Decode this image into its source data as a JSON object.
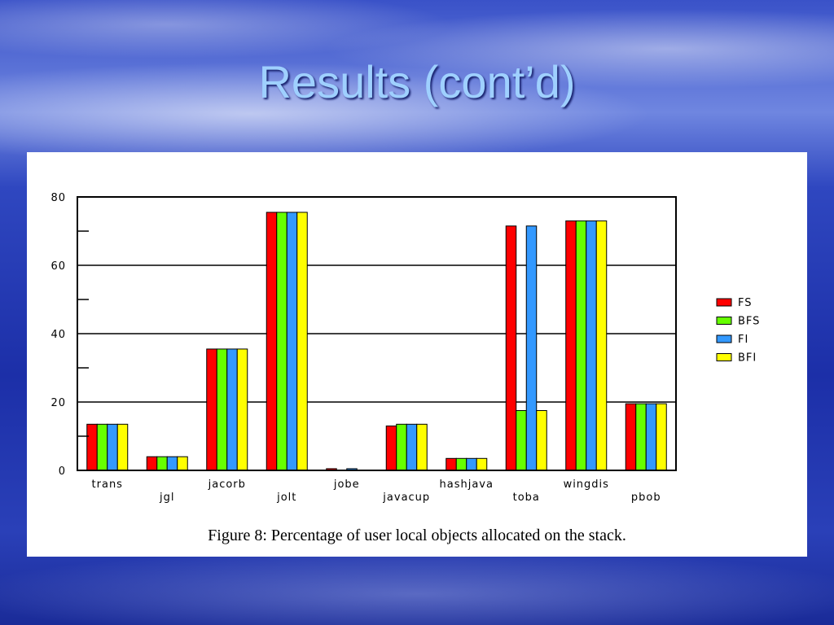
{
  "slide": {
    "title": "Results (cont’d)"
  },
  "chart_data": {
    "type": "bar",
    "categories": [
      "trans",
      "jgl",
      "jacorb",
      "jolt",
      "jobe",
      "javacup",
      "hashjava",
      "toba",
      "wingdis",
      "pbob"
    ],
    "series": [
      {
        "name": "FS",
        "color": "#ff0000",
        "values": [
          13.5,
          4,
          35.5,
          75.5,
          0.5,
          13,
          3.5,
          71.5,
          73,
          19.5
        ]
      },
      {
        "name": "BFS",
        "color": "#66ff00",
        "values": [
          13.5,
          4,
          35.5,
          75.5,
          0,
          13.5,
          3.5,
          17.5,
          73,
          19.5
        ]
      },
      {
        "name": "FI",
        "color": "#3399ff",
        "values": [
          13.5,
          4,
          35.5,
          75.5,
          0.5,
          13.5,
          3.5,
          71.5,
          73,
          19.5
        ]
      },
      {
        "name": "BFI",
        "color": "#ffff00",
        "values": [
          13.5,
          4,
          35.5,
          75.5,
          0,
          13.5,
          3.5,
          17.5,
          73,
          19.5
        ]
      }
    ],
    "ylim": [
      0,
      80
    ],
    "yticks": [
      "0",
      "20",
      "40",
      "60",
      "80"
    ],
    "grid": true,
    "legend": "right",
    "caption": "Figure 8: Percentage of user local objects allocated on the stack."
  }
}
